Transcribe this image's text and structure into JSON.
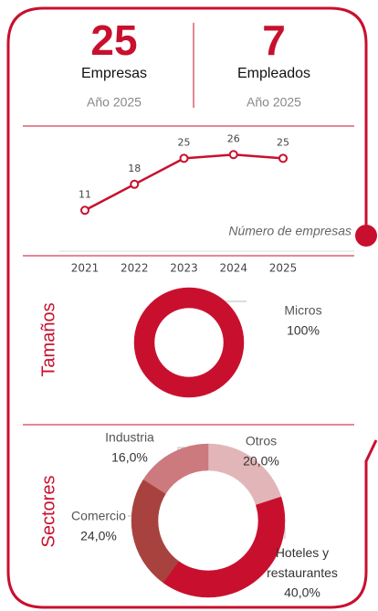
{
  "kpis": [
    {
      "value": 25,
      "label": "Empresas",
      "sub": "Año 2025"
    },
    {
      "value": 7,
      "label": "Empleados",
      "sub": "Año 2025"
    }
  ],
  "chart_data": [
    {
      "type": "line",
      "annotation": "Número de empresas",
      "x": [
        "2021",
        "2022",
        "2023",
        "2024",
        "2025"
      ],
      "values": [
        11,
        18,
        25,
        26,
        25
      ],
      "color": "#c8102e",
      "ylim": [
        0,
        30
      ]
    },
    {
      "type": "pie",
      "title": "Tamaños",
      "categories": [
        "Micros"
      ],
      "values": [
        100
      ],
      "value_labels": [
        "100%"
      ],
      "colors": [
        "#c8102e"
      ]
    },
    {
      "type": "pie",
      "title": "Sectores",
      "categories": [
        "Otros",
        "Hoteles y restaurantes",
        "Comercio",
        "Industria"
      ],
      "values": [
        20,
        40,
        24,
        16
      ],
      "value_labels": [
        "20,0%",
        "40,0%",
        "24,0%",
        "16,0%"
      ],
      "colors": [
        "#e2b6b8",
        "#c8102e",
        "#a8423f",
        "#cc7a7e"
      ]
    }
  ]
}
